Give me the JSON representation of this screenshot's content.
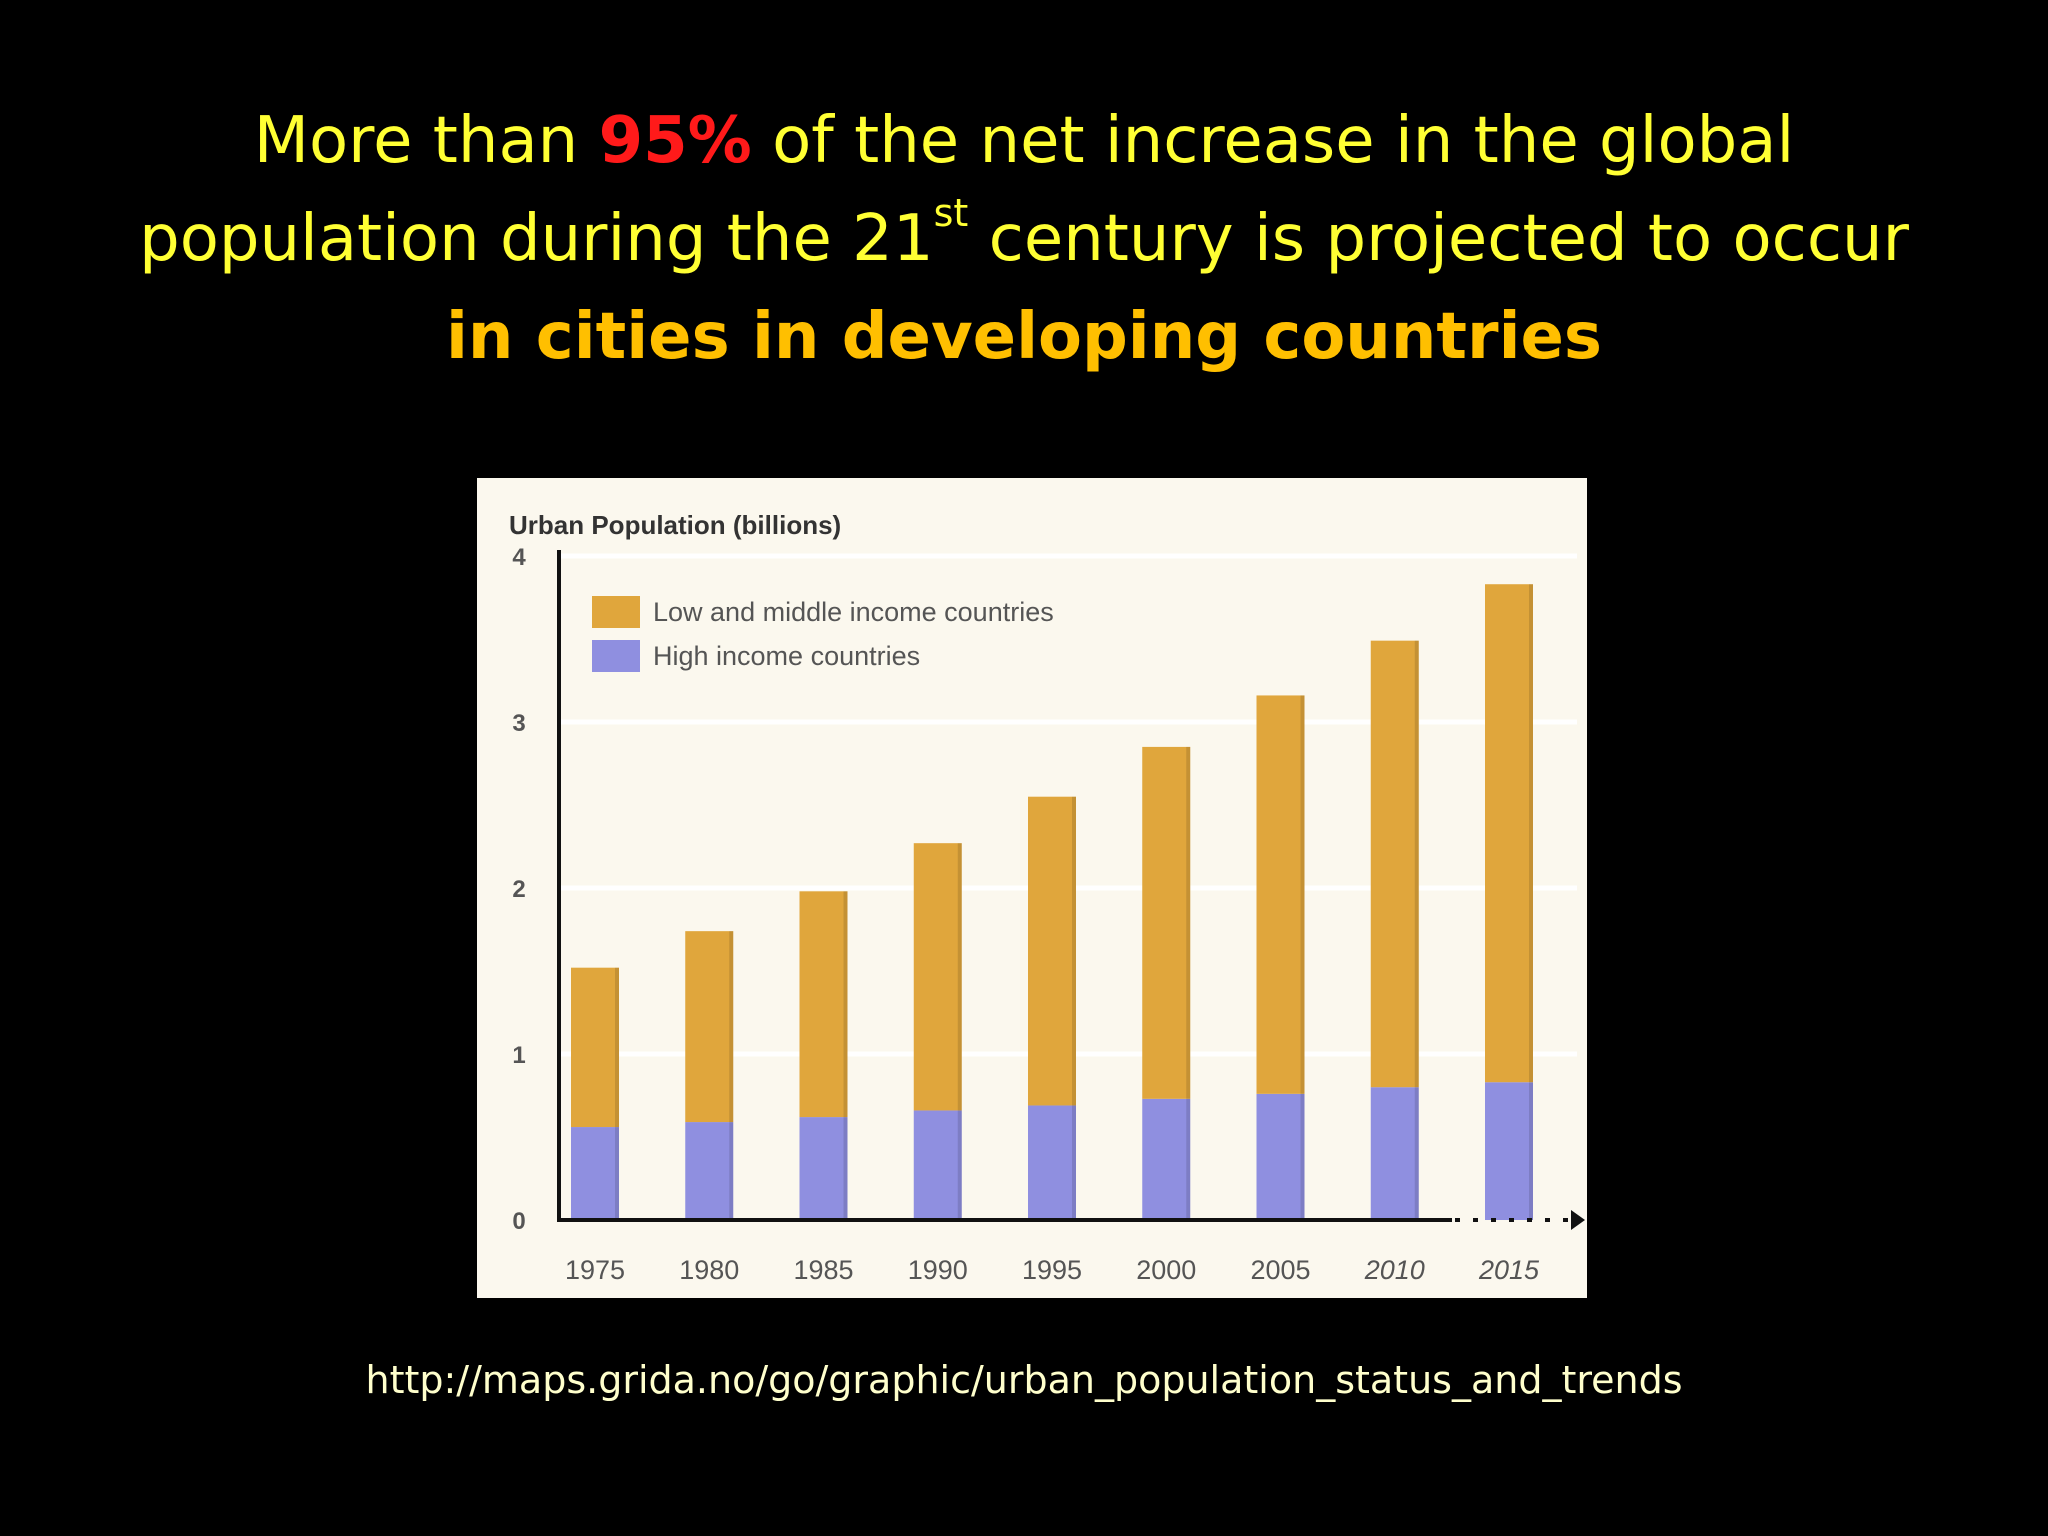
{
  "slide": {
    "headline": {
      "line1_before": "More than ",
      "line1_highlight": "95%",
      "line1_after": " of the net increase in the global",
      "line2_before": "population during the 21",
      "line2_superscript": "st",
      "line2_after": " century is projected to occur",
      "line3_emphasis": "in cities in developing countries"
    },
    "source_url": "http://maps.grida.no/go/graphic/urban_population_status_and_trends",
    "colors": {
      "background": "#000000",
      "headline": "#ffff33",
      "highlight_red": "#ff1a1a",
      "emphasis_orange": "#ffbf00",
      "chart_background": "#fbf8ee"
    }
  },
  "chart_data": {
    "type": "bar",
    "stacked": true,
    "title": "Urban Population (billions)",
    "xlabel": "",
    "ylabel": "",
    "categories": [
      "1975",
      "1980",
      "1985",
      "1990",
      "1995",
      "2000",
      "2005",
      "2010",
      "2015"
    ],
    "ylim": [
      0,
      4
    ],
    "yticks": [
      "0",
      "1",
      "2",
      "3",
      "4"
    ],
    "grid": true,
    "legend_position": "top-left",
    "series": [
      {
        "name": "High income countries",
        "color": "#8f8fe0",
        "values": [
          0.56,
          0.59,
          0.62,
          0.66,
          0.69,
          0.73,
          0.76,
          0.8,
          0.83
        ]
      },
      {
        "name": "Low and middle income countries",
        "color": "#e0a63c",
        "values": [
          0.96,
          1.15,
          1.36,
          1.61,
          1.86,
          2.12,
          2.4,
          2.69,
          3.0
        ]
      }
    ]
  }
}
